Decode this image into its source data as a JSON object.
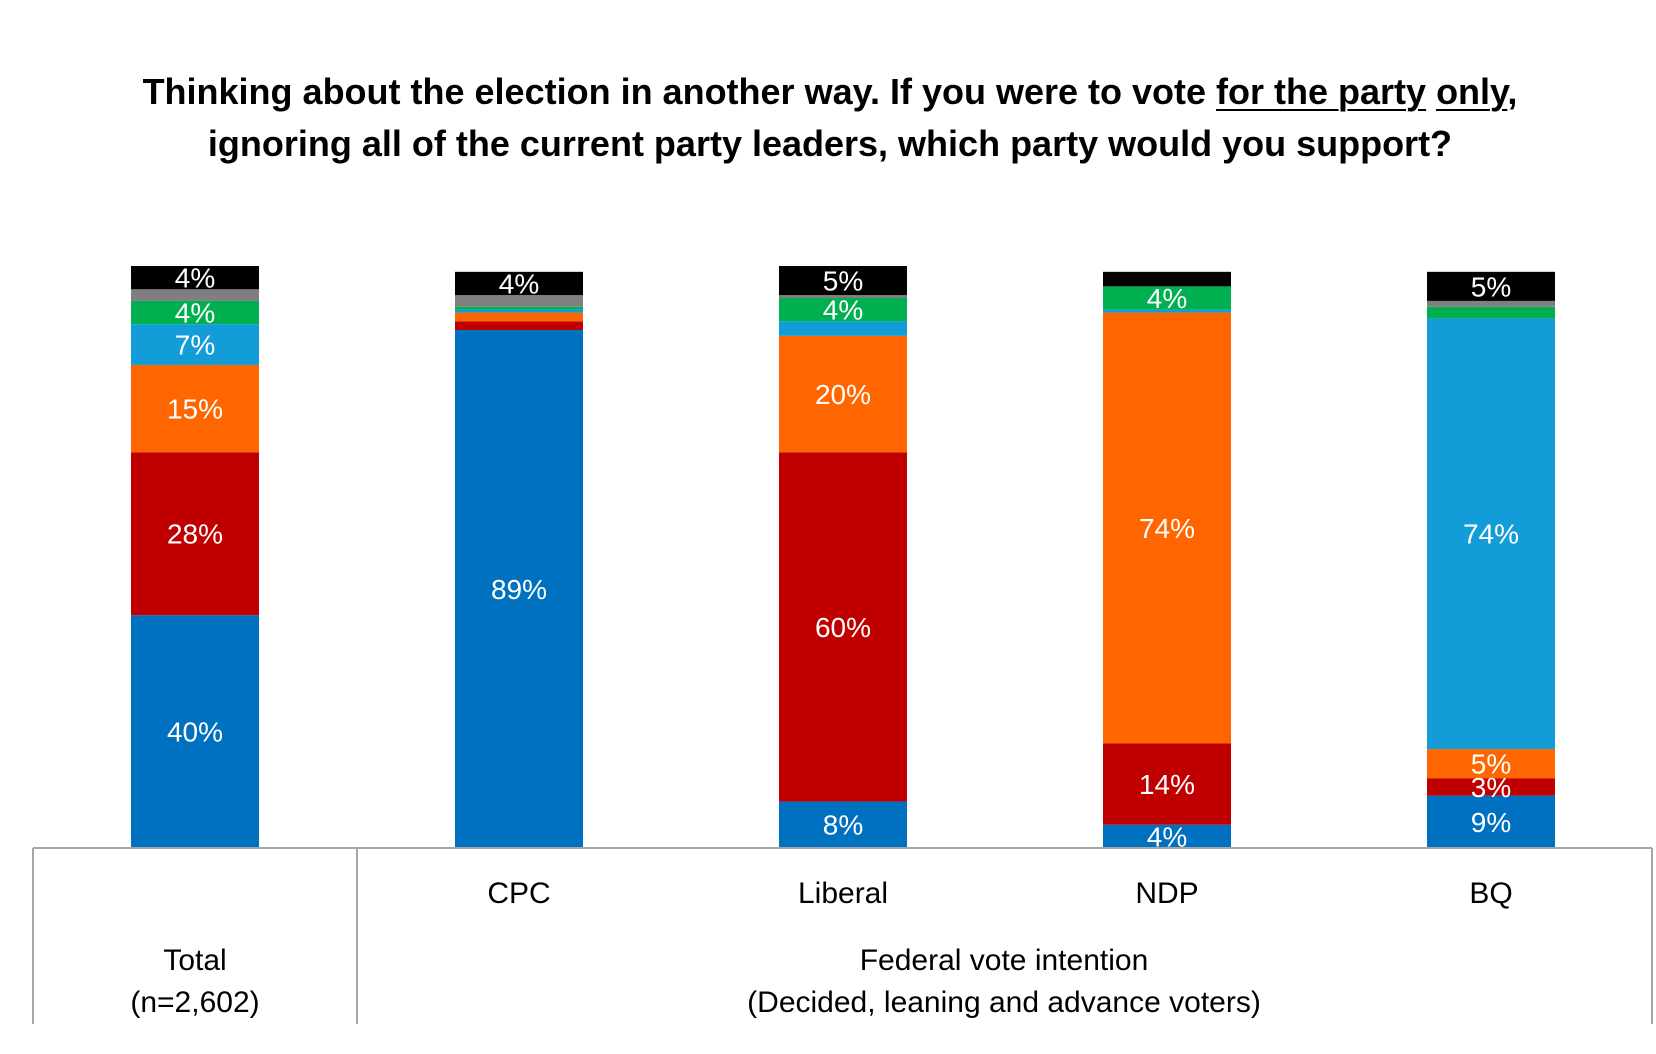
{
  "chart_data": {
    "type": "bar",
    "stacked": true,
    "title_parts": [
      {
        "text": "Thinking about the election in another way. If you were to vote ",
        "underline": false
      },
      {
        "text": "for the party",
        "underline": true
      },
      {
        "text": " ",
        "underline": false
      },
      {
        "text": "only",
        "underline": true
      },
      {
        "text": ", ignoring all of the current party leaders, which party would you support?",
        "underline": false
      }
    ],
    "categories": [
      "Total",
      "CPC",
      "Liberal",
      "NDP",
      "BQ"
    ],
    "category_labels": [
      "",
      "CPC",
      "Liberal",
      "NDP",
      "BQ"
    ],
    "group_labels": {
      "total": [
        "Total",
        "(n=2,602)"
      ],
      "federal": [
        "Federal vote intention",
        "(Decided, leaning and advance voters)"
      ]
    },
    "ylim": [
      0,
      100
    ],
    "series": [
      {
        "color": "#0070c0",
        "text_color": "#ffffff",
        "values": [
          40,
          89,
          8,
          4,
          9
        ],
        "labels": [
          "40%",
          "89%",
          "8%",
          "4%",
          "9%"
        ]
      },
      {
        "color": "#c00000",
        "text_color": "#ffffff",
        "values": [
          28,
          1.5,
          60,
          14,
          3
        ],
        "labels": [
          "28%",
          "",
          "60%",
          "14%",
          "3%"
        ]
      },
      {
        "color": "#ff6600",
        "text_color": "#ffffff",
        "values": [
          15,
          1.5,
          20,
          74,
          5
        ],
        "labels": [
          "15%",
          "",
          "20%",
          "74%",
          "5%"
        ]
      },
      {
        "color": "#129cd8",
        "text_color": "#ffffff",
        "values": [
          7,
          0.5,
          2.5,
          0.5,
          74
        ],
        "labels": [
          "7%",
          "",
          "",
          "",
          "74%"
        ]
      },
      {
        "color": "#00b050",
        "text_color": "#ffffff",
        "values": [
          4,
          0.5,
          4,
          4,
          2
        ],
        "labels": [
          "4%",
          "",
          "4%",
          "4%",
          ""
        ]
      },
      {
        "color": "#7f7f7f",
        "text_color": "#ffffff",
        "values": [
          2,
          2,
          0.5,
          0,
          1
        ],
        "labels": [
          "",
          "",
          "",
          "",
          ""
        ]
      },
      {
        "color": "#000000",
        "text_color": "#ffffff",
        "values": [
          4,
          4,
          5,
          2.5,
          5
        ],
        "labels": [
          "4%",
          "4%",
          "5%",
          "",
          "5%"
        ]
      }
    ]
  }
}
